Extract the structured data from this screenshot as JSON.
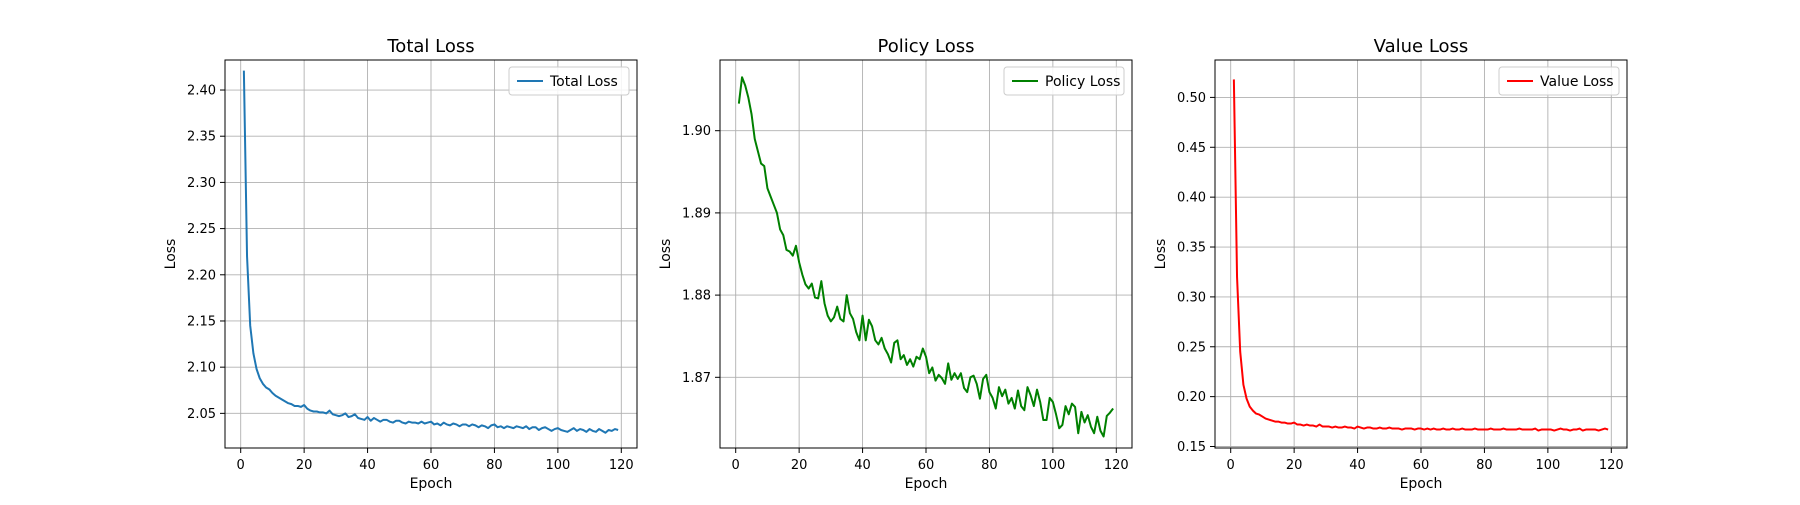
{
  "chart_data": [
    {
      "type": "line",
      "title": "Total Loss",
      "xlabel": "Epoch",
      "ylabel": "Loss",
      "xlim": [
        -4.95,
        124.95
      ],
      "ylim": [
        2.0125,
        2.4325
      ],
      "xticks": [
        0,
        20,
        40,
        60,
        80,
        100,
        120
      ],
      "yticks": [
        2.05,
        2.1,
        2.15,
        2.2,
        2.25,
        2.3,
        2.35,
        2.4
      ],
      "ytick_labels": [
        "2.05",
        "2.10",
        "2.15",
        "2.20",
        "2.25",
        "2.30",
        "2.35",
        "2.40"
      ],
      "grid": true,
      "legend": "top-right",
      "series": [
        {
          "name": "Total Loss",
          "color": "#1f77b4",
          "x": [
            1,
            2,
            3,
            4,
            5,
            6,
            7,
            8,
            9,
            10,
            11,
            12,
            13,
            14,
            15,
            16,
            17,
            18,
            19,
            20,
            21,
            22,
            23,
            24,
            25,
            26,
            27,
            28,
            29,
            30,
            31,
            32,
            33,
            34,
            35,
            36,
            37,
            38,
            39,
            40,
            41,
            42,
            43,
            44,
            45,
            46,
            47,
            48,
            49,
            50,
            51,
            52,
            53,
            54,
            55,
            56,
            57,
            58,
            59,
            60,
            61,
            62,
            63,
            64,
            65,
            66,
            67,
            68,
            69,
            70,
            71,
            72,
            73,
            74,
            75,
            76,
            77,
            78,
            79,
            80,
            81,
            82,
            83,
            84,
            85,
            86,
            87,
            88,
            89,
            90,
            91,
            92,
            93,
            94,
            95,
            96,
            97,
            98,
            99,
            100,
            101,
            102,
            103,
            104,
            105,
            106,
            107,
            108,
            109,
            110,
            111,
            112,
            113,
            114,
            115,
            116,
            117,
            118,
            119
          ],
          "y": [
            2.421,
            2.22,
            2.145,
            2.115,
            2.098,
            2.088,
            2.082,
            2.078,
            2.076,
            2.072,
            2.069,
            2.067,
            2.065,
            2.063,
            2.061,
            2.06,
            2.058,
            2.058,
            2.057,
            2.059,
            2.055,
            2.053,
            2.052,
            2.052,
            2.051,
            2.051,
            2.05,
            2.053,
            2.049,
            2.048,
            2.047,
            2.048,
            2.05,
            2.046,
            2.047,
            2.049,
            2.045,
            2.044,
            2.043,
            2.046,
            2.042,
            2.045,
            2.043,
            2.041,
            2.043,
            2.043,
            2.041,
            2.04,
            2.042,
            2.042,
            2.04,
            2.039,
            2.041,
            2.04,
            2.04,
            2.039,
            2.041,
            2.039,
            2.04,
            2.041,
            2.038,
            2.039,
            2.037,
            2.04,
            2.038,
            2.037,
            2.039,
            2.038,
            2.036,
            2.038,
            2.038,
            2.036,
            2.038,
            2.037,
            2.035,
            2.037,
            2.036,
            2.034,
            2.037,
            2.038,
            2.035,
            2.036,
            2.034,
            2.036,
            2.035,
            2.034,
            2.036,
            2.035,
            2.034,
            2.036,
            2.033,
            2.035,
            2.035,
            2.032,
            2.034,
            2.035,
            2.033,
            2.031,
            2.033,
            2.034,
            2.032,
            2.031,
            2.03,
            2.032,
            2.034,
            2.031,
            2.033,
            2.032,
            2.03,
            2.033,
            2.031,
            2.03,
            2.033,
            2.031,
            2.029,
            2.032,
            2.031,
            2.033,
            2.032
          ]
        }
      ]
    },
    {
      "type": "line",
      "title": "Policy Loss",
      "xlabel": "Epoch",
      "ylabel": "Loss",
      "xlim": [
        -4.95,
        124.95
      ],
      "ylim": [
        1.8614,
        1.9086
      ],
      "xticks": [
        0,
        20,
        40,
        60,
        80,
        100,
        120
      ],
      "yticks": [
        1.87,
        1.88,
        1.89,
        1.9
      ],
      "ytick_labels": [
        "1.87",
        "1.88",
        "1.89",
        "1.90"
      ],
      "grid": true,
      "legend": "top-right",
      "series": [
        {
          "name": "Policy Loss",
          "color": "#008000",
          "x": [
            1,
            2,
            3,
            4,
            5,
            6,
            7,
            8,
            9,
            10,
            11,
            12,
            13,
            14,
            15,
            16,
            17,
            18,
            19,
            20,
            21,
            22,
            23,
            24,
            25,
            26,
            27,
            28,
            29,
            30,
            31,
            32,
            33,
            34,
            35,
            36,
            37,
            38,
            39,
            40,
            41,
            42,
            43,
            44,
            45,
            46,
            47,
            48,
            49,
            50,
            51,
            52,
            53,
            54,
            55,
            56,
            57,
            58,
            59,
            60,
            61,
            62,
            63,
            64,
            65,
            66,
            67,
            68,
            69,
            70,
            71,
            72,
            73,
            74,
            75,
            76,
            77,
            78,
            79,
            80,
            81,
            82,
            83,
            84,
            85,
            86,
            87,
            88,
            89,
            90,
            91,
            92,
            93,
            94,
            95,
            96,
            97,
            98,
            99,
            100,
            101,
            102,
            103,
            104,
            105,
            106,
            107,
            108,
            109,
            110,
            111,
            112,
            113,
            114,
            115,
            116,
            117,
            118,
            119
          ],
          "y": [
            1.9033,
            1.9065,
            1.9055,
            1.904,
            1.902,
            1.899,
            1.8975,
            1.896,
            1.8957,
            1.893,
            1.892,
            1.891,
            1.89,
            1.888,
            1.8873,
            1.8855,
            1.8853,
            1.8848,
            1.886,
            1.884,
            1.8825,
            1.8813,
            1.8808,
            1.8814,
            1.8797,
            1.8796,
            1.8817,
            1.879,
            1.8775,
            1.8768,
            1.8773,
            1.8786,
            1.8771,
            1.8768,
            1.88,
            1.8778,
            1.8771,
            1.8755,
            1.8745,
            1.8775,
            1.8745,
            1.877,
            1.8762,
            1.8745,
            1.874,
            1.8748,
            1.8735,
            1.8728,
            1.8718,
            1.8742,
            1.8745,
            1.8722,
            1.8727,
            1.8715,
            1.8722,
            1.8713,
            1.8725,
            1.8722,
            1.8735,
            1.8725,
            1.8705,
            1.8712,
            1.8696,
            1.8703,
            1.8699,
            1.8692,
            1.8717,
            1.8697,
            1.8705,
            1.8698,
            1.8705,
            1.8687,
            1.8682,
            1.87,
            1.8702,
            1.8692,
            1.8674,
            1.8698,
            1.8703,
            1.8682,
            1.8675,
            1.8662,
            1.8688,
            1.8677,
            1.8685,
            1.8668,
            1.8675,
            1.8662,
            1.8684,
            1.8665,
            1.866,
            1.8688,
            1.8678,
            1.8665,
            1.8685,
            1.867,
            1.8648,
            1.8648,
            1.8675,
            1.867,
            1.8655,
            1.8638,
            1.8642,
            1.8665,
            1.8655,
            1.8668,
            1.8664,
            1.8632,
            1.8658,
            1.8645,
            1.8654,
            1.864,
            1.8632,
            1.8652,
            1.8635,
            1.8628,
            1.8653,
            1.8657,
            1.8662
          ]
        }
      ]
    },
    {
      "type": "line",
      "title": "Value Loss",
      "xlabel": "Epoch",
      "ylabel": "Loss",
      "xlim": [
        -4.95,
        124.95
      ],
      "ylim": [
        0.1485,
        0.5375
      ],
      "xticks": [
        0,
        20,
        40,
        60,
        80,
        100,
        120
      ],
      "yticks": [
        0.15,
        0.2,
        0.25,
        0.3,
        0.35,
        0.4,
        0.45,
        0.5
      ],
      "ytick_labels": [
        "0.15",
        "0.20",
        "0.25",
        "0.30",
        "0.35",
        "0.40",
        "0.45",
        "0.50"
      ],
      "grid": true,
      "legend": "top-right",
      "series": [
        {
          "name": "Value Loss",
          "color": "#ff0000",
          "x": [
            1,
            2,
            3,
            4,
            5,
            6,
            7,
            8,
            9,
            10,
            11,
            12,
            13,
            14,
            15,
            16,
            17,
            18,
            19,
            20,
            21,
            22,
            23,
            24,
            25,
            26,
            27,
            28,
            29,
            30,
            31,
            32,
            33,
            34,
            35,
            36,
            37,
            38,
            39,
            40,
            41,
            42,
            43,
            44,
            45,
            46,
            47,
            48,
            49,
            50,
            51,
            52,
            53,
            54,
            55,
            56,
            57,
            58,
            59,
            60,
            61,
            62,
            63,
            64,
            65,
            66,
            67,
            68,
            69,
            70,
            71,
            72,
            73,
            74,
            75,
            76,
            77,
            78,
            79,
            80,
            81,
            82,
            83,
            84,
            85,
            86,
            87,
            88,
            89,
            90,
            91,
            92,
            93,
            94,
            95,
            96,
            97,
            98,
            99,
            100,
            101,
            102,
            103,
            104,
            105,
            106,
            107,
            108,
            109,
            110,
            111,
            112,
            113,
            114,
            115,
            116,
            117,
            118,
            119
          ],
          "y": [
            0.518,
            0.32,
            0.245,
            0.212,
            0.198,
            0.19,
            0.186,
            0.183,
            0.182,
            0.18,
            0.178,
            0.177,
            0.176,
            0.175,
            0.175,
            0.174,
            0.174,
            0.173,
            0.173,
            0.174,
            0.172,
            0.172,
            0.171,
            0.172,
            0.171,
            0.171,
            0.17,
            0.172,
            0.17,
            0.17,
            0.17,
            0.169,
            0.17,
            0.169,
            0.169,
            0.17,
            0.169,
            0.169,
            0.168,
            0.17,
            0.169,
            0.168,
            0.169,
            0.169,
            0.168,
            0.168,
            0.169,
            0.168,
            0.168,
            0.169,
            0.168,
            0.168,
            0.168,
            0.167,
            0.168,
            0.168,
            0.168,
            0.167,
            0.168,
            0.168,
            0.167,
            0.168,
            0.167,
            0.168,
            0.167,
            0.167,
            0.168,
            0.167,
            0.167,
            0.168,
            0.167,
            0.167,
            0.168,
            0.167,
            0.167,
            0.167,
            0.168,
            0.167,
            0.167,
            0.167,
            0.167,
            0.168,
            0.167,
            0.167,
            0.167,
            0.168,
            0.167,
            0.167,
            0.167,
            0.167,
            0.168,
            0.167,
            0.167,
            0.167,
            0.167,
            0.168,
            0.166,
            0.167,
            0.167,
            0.167,
            0.167,
            0.166,
            0.167,
            0.168,
            0.167,
            0.167,
            0.166,
            0.167,
            0.167,
            0.168,
            0.166,
            0.167,
            0.167,
            0.167,
            0.167,
            0.166,
            0.167,
            0.168,
            0.167
          ]
        }
      ]
    }
  ]
}
